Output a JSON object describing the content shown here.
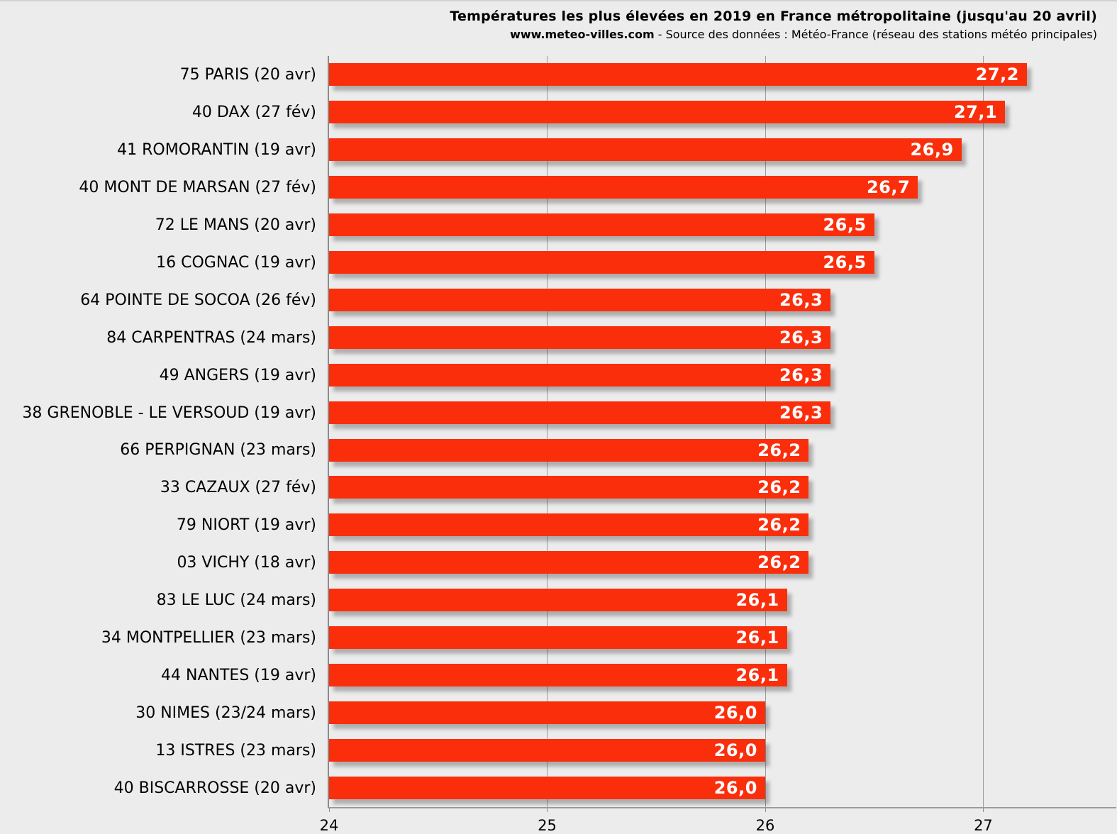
{
  "header": {
    "title": "Températures les plus élevées en 2019 en France métropolitaine (jusqu'au 20 avril)",
    "source_site": "www.meteo-villes.com",
    "source_rest": " - Source des données : Météo-France (réseau des stations météo principales)"
  },
  "chart_data": {
    "type": "bar",
    "orientation": "horizontal",
    "title": "Températures les plus élevées en 2019 en France métropolitaine (jusqu'au 20 avril)",
    "subtitle": "www.meteo-villes.com - Source des données : Météo-France (réseau des stations météo principales)",
    "value_unit": "°C",
    "xlim": [
      24,
      27.61
    ],
    "x_ticks": [
      "24",
      "25",
      "26",
      "27"
    ],
    "x_tick_values": [
      24,
      25,
      26,
      27
    ],
    "grid": "vertical-gridlines-on",
    "legend": "none",
    "bar_color": "#fb2e0c",
    "value_label_color": "#ffffff",
    "background_color": "#ececec",
    "points": [
      {
        "label": "75 PARIS (20 avr)",
        "value": 27.2,
        "display": "27,2"
      },
      {
        "label": "40 DAX (27 fév)",
        "value": 27.1,
        "display": "27,1"
      },
      {
        "label": "41 ROMORANTIN (19 avr)",
        "value": 26.9,
        "display": "26,9"
      },
      {
        "label": "40 MONT DE MARSAN (27 fév)",
        "value": 26.7,
        "display": "26,7"
      },
      {
        "label": "72 LE MANS (20 avr)",
        "value": 26.5,
        "display": "26,5"
      },
      {
        "label": "16 COGNAC (19 avr)",
        "value": 26.5,
        "display": "26,5"
      },
      {
        "label": "64 POINTE DE SOCOA (26 fév)",
        "value": 26.3,
        "display": "26,3"
      },
      {
        "label": "84 CARPENTRAS (24 mars)",
        "value": 26.3,
        "display": "26,3"
      },
      {
        "label": "49 ANGERS (19 avr)",
        "value": 26.3,
        "display": "26,3"
      },
      {
        "label": "38 GRENOBLE - LE VERSOUD (19 avr)",
        "value": 26.3,
        "display": "26,3"
      },
      {
        "label": "66 PERPIGNAN (23 mars)",
        "value": 26.2,
        "display": "26,2"
      },
      {
        "label": "33 CAZAUX (27 fév)",
        "value": 26.2,
        "display": "26,2"
      },
      {
        "label": "79 NIORT (19 avr)",
        "value": 26.2,
        "display": "26,2"
      },
      {
        "label": "03 VICHY (18 avr)",
        "value": 26.2,
        "display": "26,2"
      },
      {
        "label": "83 LE LUC (24 mars)",
        "value": 26.1,
        "display": "26,1"
      },
      {
        "label": "34 MONTPELLIER (23 mars)",
        "value": 26.1,
        "display": "26,1"
      },
      {
        "label": "44 NANTES (19 avr)",
        "value": 26.1,
        "display": "26,1"
      },
      {
        "label": "30 NIMES (23/24 mars)",
        "value": 26.0,
        "display": "26,0"
      },
      {
        "label": "13 ISTRES (23 mars)",
        "value": 26.0,
        "display": "26,0"
      },
      {
        "label": "40 BISCARROSSE (20 avr)",
        "value": 26.0,
        "display": "26,0"
      }
    ]
  }
}
